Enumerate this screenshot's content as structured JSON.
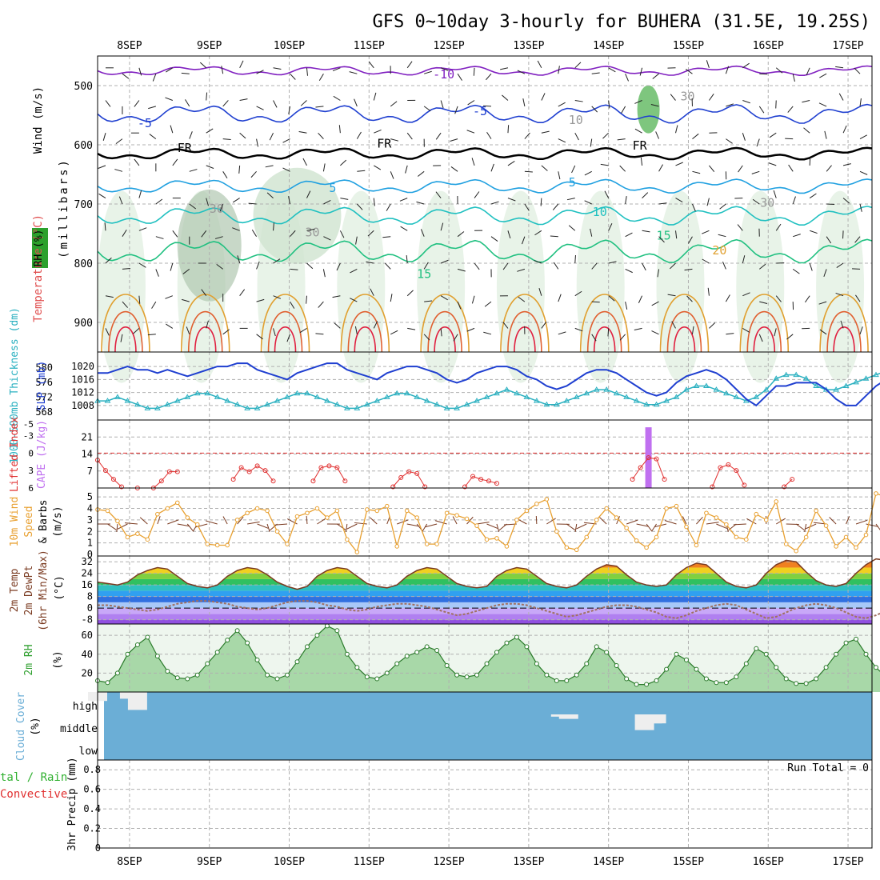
{
  "title": "GFS 0~10day 3-hourly for BUHERA (31.5E, 19.25S)",
  "days": [
    "8SEP",
    "9SEP",
    "10SEP",
    "11SEP",
    "12SEP",
    "13SEP",
    "14SEP",
    "15SEP",
    "16SEP",
    "17SEP"
  ],
  "colors": {
    "grid": "#b0b0b0",
    "rh_band": "#2ca02c",
    "slp": "#1f3fd0",
    "thickness": "#2ab0c0",
    "lifted_index": "#e03030",
    "cape": "#c070f0",
    "wind_speed": "#e8a030",
    "wind_barbs": "#7a3a20",
    "rh2m": "#30a030",
    "cloud": "#6baed6",
    "precip_total": "#30b030",
    "precip_conv": "#e03030"
  },
  "panels": {
    "upper": {
      "label_wind": "Wind (m/s)",
      "label_temp": "Temperature (°C)",
      "label_rh": "RH (%)",
      "label_pressure": "(millibars)",
      "pressure_ticks": [
        "500",
        "600",
        "700",
        "800",
        "900"
      ],
      "isotherm_labels": [
        "-10",
        "-5",
        "-5",
        "FR",
        "FR",
        "FR",
        "5",
        "5",
        "10",
        "15",
        "15",
        "20",
        "30",
        "30",
        "30",
        "30",
        "10"
      ]
    },
    "slp": {
      "label_thickness": "1000-500mb Thickness (dm)",
      "label_slp": "SLP (mb)",
      "thickness_ticks": [
        "568",
        "572",
        "576",
        "580"
      ],
      "slp_ticks": [
        "1008",
        "1012",
        "1016",
        "1020"
      ]
    },
    "cape": {
      "label_li": "Lifted Index",
      "label_cape": "CAPE (J/kg)",
      "li_ticks": [
        "-5",
        "-3",
        "0",
        "3",
        "6"
      ],
      "cape_ticks": [
        "7",
        "14",
        "21"
      ]
    },
    "wind10m": {
      "label_a": "10m Wind",
      "label_b": "Speed",
      "label_c": "& Barbs",
      "label_unit": "(m/s)",
      "ticks": [
        "0",
        "1",
        "2",
        "3",
        "4",
        "5"
      ]
    },
    "temp": {
      "label_a": "2m Temp",
      "label_b": "2m DewPt",
      "label_c": "(6hr Min/Max)",
      "label_unit": "(°C)",
      "ticks": [
        "-8",
        "0",
        "8",
        "16",
        "24",
        "32"
      ]
    },
    "rh2m": {
      "label": "2m RH",
      "label_unit": "(%)",
      "ticks": [
        "20",
        "40",
        "60"
      ]
    },
    "cloud": {
      "label": "Cloud Cover",
      "label_unit": "(%)",
      "levels": [
        "high",
        "middle",
        "low"
      ]
    },
    "precip": {
      "label_a": "tal / Rain",
      "label_b": "Convective",
      "label_c": "3hr Precip (mm)",
      "run_total": "Run Total = 0",
      "ticks": [
        "0",
        "0.2",
        "0.4",
        "0.6",
        "0.8"
      ]
    }
  },
  "chart_data": [
    {
      "type": "line",
      "panel": "slp",
      "title": "SLP (mb) / 1000-500mb Thickness (dm)",
      "x_range_days": [
        7.6,
        17.3
      ],
      "series": [
        {
          "name": "SLP (mb)",
          "ylim": [
            1006,
            1022
          ],
          "values": [
            1018,
            1018,
            1019,
            1020,
            1019,
            1019,
            1018,
            1019,
            1018,
            1017,
            1018,
            1019,
            1020,
            1020,
            1021,
            1021,
            1019,
            1018,
            1017,
            1016,
            1018,
            1019,
            1020,
            1021,
            1021,
            1019,
            1018,
            1017,
            1016,
            1018,
            1019,
            1020,
            1020,
            1019,
            1018,
            1016,
            1015,
            1016,
            1018,
            1019,
            1020,
            1020,
            1019,
            1017,
            1016,
            1014,
            1013,
            1014,
            1016,
            1018,
            1019,
            1019,
            1018,
            1016,
            1014,
            1012,
            1011,
            1012,
            1015,
            1017,
            1018,
            1019,
            1018,
            1016,
            1013,
            1010,
            1008,
            1011,
            1014,
            1014,
            1015,
            1015,
            1015,
            1013,
            1010,
            1008,
            1008,
            1011,
            1014,
            1016,
            1017,
            1017,
            1016,
            1014,
            1011,
            1009,
            1008,
            1009,
            1012,
            1014,
            1015,
            1015
          ]
        },
        {
          "name": "1000-500mb Thickness (dm)",
          "ylim": [
            568,
            582
          ],
          "values": [
            571,
            571,
            572,
            571,
            570,
            569,
            569,
            570,
            571,
            572,
            573,
            573,
            572,
            571,
            570,
            569,
            569,
            570,
            571,
            572,
            573,
            573,
            572,
            571,
            570,
            569,
            569,
            570,
            571,
            572,
            573,
            573,
            572,
            571,
            570,
            569,
            569,
            570,
            571,
            572,
            573,
            574,
            573,
            572,
            571,
            570,
            570,
            571,
            572,
            573,
            574,
            574,
            573,
            572,
            571,
            570,
            570,
            571,
            572,
            574,
            575,
            575,
            574,
            573,
            572,
            571,
            572,
            574,
            577,
            578,
            578,
            577,
            575,
            574,
            574,
            575,
            576,
            577,
            578,
            579,
            579,
            578,
            577,
            576,
            576,
            577,
            578,
            579,
            580,
            581,
            581,
            580
          ]
        }
      ]
    },
    {
      "type": "bar",
      "panel": "cape",
      "title": "CAPE (J/kg) / Lifted Index",
      "series": [
        {
          "name": "CAPE (J/kg)",
          "x_days": [
            14.5
          ],
          "values": [
            25
          ]
        },
        {
          "name": "Lifted Index",
          "x_days": [
            7.6,
            7.7,
            7.8,
            7.9,
            8.1,
            8.3,
            8.4,
            8.5,
            8.6,
            9.3,
            9.4,
            9.5,
            9.6,
            9.7,
            9.8,
            10.3,
            10.4,
            10.5,
            10.6,
            10.7,
            11.3,
            11.4,
            11.5,
            11.6,
            11.7,
            12.2,
            12.3,
            12.4,
            12.5,
            12.6,
            14.3,
            14.4,
            14.5,
            14.6,
            14.7,
            15.3,
            15.4,
            15.5,
            15.6,
            15.7,
            16.2,
            16.3
          ],
          "values": [
            1.2,
            3.0,
            4.5,
            5.8,
            6,
            6,
            4.8,
            3.2,
            3.2,
            4.5,
            2.5,
            3.2,
            2.2,
            3.0,
            4.8,
            4.8,
            2.5,
            2.2,
            2.5,
            4.8,
            5.8,
            4.2,
            3.2,
            3.5,
            5.8,
            5.8,
            4.0,
            4.5,
            4.8,
            5.2,
            4.5,
            2.5,
            0.8,
            1.0,
            4.5,
            5.8,
            2.5,
            2.0,
            3.0,
            5.5,
            5.8,
            4.5
          ]
        }
      ]
    },
    {
      "type": "line",
      "panel": "wind10m",
      "title": "10m Wind Speed & Barbs (m/s)",
      "ylim": [
        0,
        5.5
      ],
      "series": [
        {
          "name": "10m Wind Speed",
          "values": [
            3.9,
            3.8,
            2.9,
            1.5,
            1.8,
            1.3,
            3.5,
            4.0,
            4.5,
            3.2,
            2.6,
            0.9,
            0.8,
            0.8,
            3.0,
            3.6,
            4.0,
            3.8,
            2.0,
            0.9,
            3.3,
            3.6,
            4.0,
            3.2,
            3.8,
            1.3,
            0.2,
            3.9,
            3.8,
            4.2,
            0.7,
            3.8,
            3.2,
            0.9,
            0.9,
            3.6,
            3.4,
            3.1,
            2.5,
            1.3,
            1.4,
            0.7,
            3.0,
            3.8,
            4.4,
            4.8,
            2.0,
            0.6,
            0.4,
            1.5,
            3.0,
            4.0,
            3.2,
            2.3,
            1.2,
            0.6,
            1.5,
            4.0,
            4.2,
            2.4,
            0.8,
            3.6,
            3.2,
            2.6,
            1.5,
            1.3,
            3.5,
            3.0,
            4.6,
            0.9,
            0.3,
            1.5,
            3.8,
            2.5,
            0.7,
            1.5,
            0.6,
            1.7,
            5.3,
            5.0,
            3.0,
            1.2,
            3.0,
            4.5,
            4.0,
            3.0,
            2.5,
            2.0,
            1.5,
            1.2,
            0.8,
            3.0
          ]
        }
      ]
    },
    {
      "type": "area",
      "panel": "temp",
      "title": "2m Temp / 2m DewPt (6hr Min/Max) (°C)",
      "ylim": [
        -11,
        36
      ],
      "series": [
        {
          "name": "2m Temp",
          "values": [
            18,
            17,
            16,
            18,
            23,
            26,
            28,
            27,
            22,
            17,
            15,
            14,
            16,
            22,
            26,
            28,
            27,
            23,
            18,
            15,
            13,
            15,
            22,
            26,
            28,
            27,
            22,
            17,
            15,
            14,
            16,
            22,
            26,
            28,
            27,
            22,
            17,
            15,
            14,
            15,
            22,
            26,
            28,
            27,
            22,
            17,
            15,
            14,
            16,
            22,
            27,
            30,
            29,
            23,
            18,
            16,
            15,
            16,
            23,
            28,
            31,
            30,
            24,
            18,
            15,
            14,
            16,
            24,
            30,
            33,
            32,
            25,
            19,
            16,
            15,
            17,
            24,
            30,
            34,
            33,
            26,
            19,
            16,
            15,
            17,
            25,
            32,
            35,
            34,
            26,
            20,
            17
          ]
        },
        {
          "name": "2m DewPt",
          "values": [
            2,
            2,
            1,
            0,
            -1,
            -2,
            -1,
            1,
            3,
            4,
            5,
            5,
            4,
            3,
            1,
            0,
            -1,
            0,
            2,
            4,
            5,
            5,
            4,
            2,
            1,
            -1,
            -2,
            -1,
            1,
            2,
            3,
            3,
            2,
            1,
            -1,
            -3,
            -5,
            -4,
            -2,
            0,
            2,
            3,
            3,
            2,
            0,
            -2,
            -4,
            -6,
            -5,
            -3,
            -1,
            1,
            2,
            2,
            1,
            -1,
            -3,
            -6,
            -7,
            -5,
            -2,
            0,
            2,
            3,
            2,
            -1,
            -4,
            -7,
            -6,
            -3,
            0,
            2,
            3,
            2,
            0,
            -3,
            -6,
            -7,
            -5,
            -2,
            1,
            3,
            4,
            3,
            1,
            -2,
            -5,
            -4,
            -2,
            1,
            3,
            4
          ]
        }
      ]
    },
    {
      "type": "area",
      "panel": "rh2m",
      "title": "2m RH (%)",
      "ylim": [
        0,
        72
      ],
      "series": [
        {
          "name": "2m RH",
          "values": [
            12,
            10,
            20,
            40,
            50,
            58,
            38,
            22,
            15,
            14,
            18,
            30,
            42,
            55,
            65,
            52,
            34,
            18,
            14,
            18,
            32,
            48,
            60,
            70,
            65,
            40,
            26,
            16,
            14,
            20,
            30,
            38,
            42,
            48,
            44,
            28,
            18,
            16,
            18,
            30,
            42,
            52,
            58,
            48,
            30,
            18,
            12,
            12,
            18,
            30,
            48,
            42,
            28,
            14,
            8,
            8,
            12,
            24,
            40,
            34,
            24,
            14,
            10,
            10,
            16,
            30,
            46,
            40,
            26,
            14,
            9,
            9,
            14,
            26,
            40,
            52,
            56,
            40,
            26,
            16,
            14,
            18,
            30,
            46,
            60,
            48,
            30,
            16,
            10,
            10,
            14,
            30
          ]
        }
      ]
    },
    {
      "type": "bar",
      "panel": "cloud",
      "title": "Cloud Cover (%)",
      "series": [
        {
          "name": "high",
          "x_days": [
            7.6,
            7.9,
            8.0,
            8.1
          ],
          "values": [
            60,
            100,
            70,
            20
          ]
        },
        {
          "name": "middle",
          "x_days": [
            13.3,
            13.4,
            13.5,
            14.45,
            14.55,
            14.6
          ],
          "values": [
            100,
            90,
            80,
            30,
            60,
            60
          ]
        },
        {
          "name": "low",
          "x_days": [],
          "values": []
        }
      ]
    },
    {
      "type": "bar",
      "panel": "precip",
      "title": "3hr Precip (mm)",
      "ylim": [
        0,
        0.9
      ],
      "series": [
        {
          "name": "Total / Rain",
          "values": []
        },
        {
          "name": "Convective",
          "values": []
        }
      ]
    }
  ]
}
